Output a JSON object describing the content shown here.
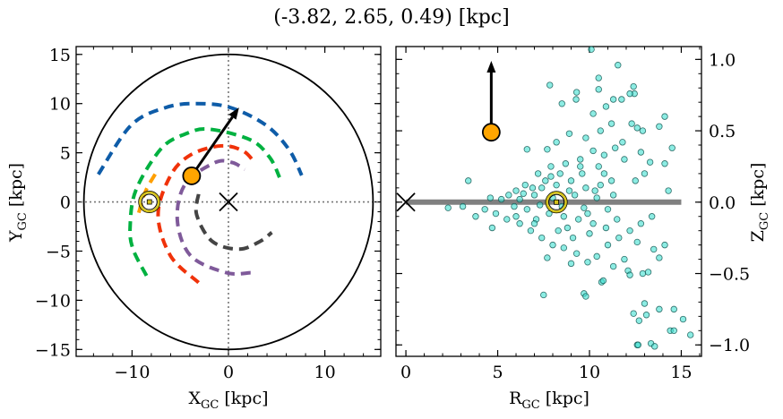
{
  "figure_title": "(-3.82, 2.65, 0.49) [kpc]",
  "chart_data": [
    {
      "type": "line",
      "panel": "left",
      "xlabel": {
        "base": "X",
        "sub": "GC",
        "unit": " [kpc]"
      },
      "ylabel": {
        "base": "Y",
        "sub": "GC",
        "unit": " [kpc]"
      },
      "xlim": [
        -15.8,
        15.8
      ],
      "ylim": [
        -15.7,
        15.8
      ],
      "xticks": [
        {
          "v": -10,
          "label": "−10"
        },
        {
          "v": 0,
          "label": "0"
        },
        {
          "v": 10,
          "label": "10"
        }
      ],
      "yticks": [
        {
          "v": 15,
          "label": "15"
        },
        {
          "v": 10,
          "label": "10"
        },
        {
          "v": 5,
          "label": "5"
        },
        {
          "v": 0,
          "label": "0"
        },
        {
          "v": -5,
          "label": "−5"
        },
        {
          "v": -10,
          "label": "−10"
        },
        {
          "v": -15,
          "label": "−15"
        }
      ],
      "boundary_circle_radius": 15,
      "crosshair_lines": {
        "x": 0,
        "y": 0,
        "style": "dotted",
        "color": "#777777"
      },
      "series": [
        {
          "color": "#0e5ca8",
          "x": [
            -13.5,
            -10.1,
            -6.5,
            -3.3,
            0.2,
            3.9,
            6.3,
            7.6
          ],
          "y": [
            2.8,
            7.8,
            9.6,
            10.0,
            9.6,
            7.8,
            5.3,
            2.7
          ]
        },
        {
          "color": "#00b140",
          "x": [
            -8.5,
            -9.9,
            -10.2,
            -9.6,
            -7.0,
            -4.5,
            -2.0,
            2.3,
            4.3,
            5.3
          ],
          "y": [
            -7.5,
            -4.8,
            -2.5,
            1.2,
            5.4,
            6.9,
            7.4,
            6.3,
            4.5,
            2.5
          ]
        },
        {
          "color": "#ff9f00",
          "x": [
            -9.3,
            -8.9,
            -8.4,
            -7.3
          ],
          "y": [
            -1.1,
            0.3,
            1.5,
            3.3
          ]
        },
        {
          "color": "#f0320a",
          "x": [
            -3.1,
            -6.0,
            -7.3,
            -6.0,
            -3.9,
            -0.8,
            1.5,
            2.8
          ],
          "y": [
            -8.2,
            -5.5,
            -1.3,
            2.7,
            4.8,
            5.7,
            5.2,
            3.9
          ]
        },
        {
          "color": "#7f5a9a",
          "x": [
            2.3,
            -0.2,
            -3.9,
            -5.3,
            -4.5,
            -1.4,
            0.4,
            1.7
          ],
          "y": [
            -7.2,
            -7.2,
            -5.5,
            -1.9,
            1.8,
            4.0,
            4.0,
            3.3
          ]
        },
        {
          "color": "#444444",
          "x": [
            -3.1,
            -3.3,
            -1.7,
            1.1,
            3.3,
            4.5
          ],
          "y": [
            0.8,
            -1.3,
            -4.0,
            -4.8,
            -4.0,
            -3.1
          ]
        }
      ],
      "galactic_center_marker": {
        "x": 0,
        "y": 0,
        "symbol": "x"
      },
      "sun_marker": {
        "x": -8.2,
        "y": 0,
        "symbol": "sun",
        "color": "#d4c21a"
      },
      "object_marker": {
        "x": -3.82,
        "y": 2.65,
        "color": "#ffa500"
      },
      "velocity_arrow": {
        "from": [
          -3.82,
          2.65
        ],
        "to": [
          1.1,
          9.6
        ]
      }
    },
    {
      "type": "scatter",
      "panel": "right",
      "xlabel": {
        "base": "R",
        "sub": "GC",
        "unit": " [kpc]"
      },
      "ylabel": {
        "base": "Z",
        "sub": "GC",
        "unit": " [kpc]"
      },
      "xlim": [
        -0.54,
        16.1
      ],
      "ylim": [
        -1.08,
        1.09
      ],
      "xticks": [
        {
          "v": 0,
          "label": "0"
        },
        {
          "v": 5,
          "label": "5"
        },
        {
          "v": 10,
          "label": "10"
        },
        {
          "v": 15,
          "label": "15"
        }
      ],
      "yticks": [
        {
          "v": 1.0,
          "label": "1.0"
        },
        {
          "v": 0.5,
          "label": "0.5"
        },
        {
          "v": 0.0,
          "label": "0.0"
        },
        {
          "v": -0.5,
          "label": "−0.5"
        },
        {
          "v": -1.0,
          "label": "−1.0"
        }
      ],
      "disk_line": {
        "x": [
          0,
          15
        ],
        "y": 0,
        "color": "#808080"
      },
      "point_color": "#40e0d0",
      "points": [
        [
          10.1,
          1.07
        ],
        [
          11.55,
          0.96
        ],
        [
          7.84,
          0.82
        ],
        [
          10.5,
          0.87
        ],
        [
          10.5,
          0.79
        ],
        [
          9.3,
          0.77
        ],
        [
          9.27,
          0.72
        ],
        [
          8.5,
          0.69
        ],
        [
          10.2,
          0.62
        ],
        [
          10.9,
          0.67
        ],
        [
          11.3,
          0.72
        ],
        [
          11.75,
          0.72
        ],
        [
          12.4,
          0.81
        ],
        [
          12.45,
          0.76
        ],
        [
          12.2,
          0.76
        ],
        [
          14.1,
          0.6
        ],
        [
          13.8,
          0.53
        ],
        [
          14.5,
          0.38
        ],
        [
          14.1,
          0.27
        ],
        [
          14.3,
          0.08
        ],
        [
          3.4,
          0.15
        ],
        [
          2.3,
          -0.04
        ],
        [
          3.1,
          -0.03
        ],
        [
          3.8,
          -0.1
        ],
        [
          4.7,
          -0.18
        ],
        [
          6.6,
          0.37
        ],
        [
          7.5,
          -0.65
        ],
        [
          9.7,
          -0.64
        ],
        [
          9.8,
          -0.66
        ],
        [
          10.66,
          -0.56
        ],
        [
          10.75,
          -0.55
        ],
        [
          12.1,
          -0.48
        ],
        [
          12.2,
          -0.51
        ],
        [
          12.9,
          -0.5
        ],
        [
          13.2,
          -0.49
        ],
        [
          12.4,
          -0.78
        ],
        [
          13.0,
          -0.71
        ],
        [
          12.7,
          -0.83
        ],
        [
          13.1,
          -0.79
        ],
        [
          13.8,
          -0.75
        ],
        [
          14.6,
          -0.75
        ],
        [
          15.1,
          -0.82
        ],
        [
          14.4,
          -0.9
        ],
        [
          14.6,
          -0.9
        ],
        [
          15.5,
          -0.93
        ],
        [
          12.6,
          -1.0
        ],
        [
          12.65,
          -1.0
        ],
        [
          13.35,
          -0.99
        ],
        [
          13.55,
          -1.01
        ],
        [
          7.7,
          -0.39
        ],
        [
          9.0,
          -0.43
        ],
        [
          14.1,
          -0.3
        ],
        [
          13.8,
          -0.39
        ],
        [
          13.5,
          -0.33
        ],
        [
          12.3,
          0.55
        ],
        [
          12.6,
          0.52
        ],
        [
          12.9,
          0.5
        ],
        [
          11.2,
          0.55
        ],
        [
          10.6,
          0.5
        ],
        [
          9.8,
          0.45
        ],
        [
          8.9,
          0.48
        ],
        [
          8.2,
          0.42
        ],
        [
          7.7,
          0.37
        ],
        [
          11.8,
          0.42
        ],
        [
          12.8,
          0.35
        ],
        [
          13.3,
          0.28
        ],
        [
          13.0,
          0.2
        ],
        [
          12.5,
          0.15
        ],
        [
          11.9,
          0.3
        ],
        [
          11.4,
          0.38
        ],
        [
          10.8,
          0.33
        ],
        [
          10.2,
          0.36
        ],
        [
          9.5,
          0.3
        ],
        [
          8.7,
          0.27
        ],
        [
          7.9,
          0.25
        ],
        [
          7.2,
          0.2
        ],
        [
          6.5,
          0.12
        ],
        [
          6.0,
          0.08
        ],
        [
          5.6,
          0.05
        ],
        [
          5.2,
          0.02
        ],
        [
          4.6,
          0.03
        ],
        [
          4.3,
          -0.05
        ],
        [
          4.9,
          -0.08
        ],
        [
          5.5,
          -0.12
        ],
        [
          6.2,
          -0.15
        ],
        [
          6.8,
          -0.2
        ],
        [
          7.4,
          -0.25
        ],
        [
          8.0,
          -0.3
        ],
        [
          8.6,
          -0.32
        ],
        [
          9.3,
          -0.36
        ],
        [
          9.9,
          -0.42
        ],
        [
          10.4,
          -0.38
        ],
        [
          11.0,
          -0.3
        ],
        [
          11.6,
          -0.25
        ],
        [
          12.2,
          -0.2
        ],
        [
          12.8,
          -0.15
        ],
        [
          13.4,
          -0.1
        ],
        [
          12.6,
          -0.28
        ],
        [
          11.9,
          -0.4
        ],
        [
          11.3,
          -0.45
        ],
        [
          6.2,
          0.02
        ],
        [
          6.6,
          -0.05
        ],
        [
          7.0,
          0.05
        ],
        [
          7.4,
          0.1
        ],
        [
          7.8,
          -0.08
        ],
        [
          8.2,
          0.12
        ],
        [
          8.6,
          -0.1
        ],
        [
          9.0,
          0.15
        ],
        [
          9.4,
          -0.12
        ],
        [
          9.8,
          0.1
        ],
        [
          10.2,
          -0.15
        ],
        [
          10.6,
          0.12
        ],
        [
          11.0,
          -0.05
        ],
        [
          7.1,
          -0.12
        ],
        [
          7.6,
          0.15
        ],
        [
          8.4,
          0.2
        ],
        [
          8.8,
          -0.18
        ],
        [
          9.6,
          0.2
        ],
        [
          10.0,
          -0.22
        ],
        [
          10.8,
          0.2
        ],
        [
          11.2,
          0.15
        ],
        [
          6.9,
          0.1
        ],
        [
          7.3,
          -0.02
        ],
        [
          8.0,
          0.03
        ],
        [
          8.5,
          -0.03
        ],
        [
          9.2,
          0.05
        ],
        [
          9.7,
          -0.04
        ],
        [
          10.4,
          0.03
        ],
        [
          11.3,
          0.05
        ],
        [
          5.9,
          -0.03
        ],
        [
          6.4,
          0.06
        ],
        [
          10.9,
          -0.18
        ],
        [
          9.1,
          -0.25
        ],
        [
          8.3,
          -0.2
        ],
        [
          7.9,
          0.18
        ],
        [
          9.5,
          0.25
        ],
        [
          10.5,
          0.25
        ],
        [
          11.5,
          -0.12
        ],
        [
          6.0,
          -0.1
        ],
        [
          7.0,
          -0.15
        ],
        [
          8.9,
          0.08
        ],
        [
          9.9,
          -0.08
        ],
        [
          10.3,
          0.08
        ]
      ],
      "galactic_center_marker": {
        "x": 0,
        "y": 0,
        "symbol": "x"
      },
      "sun_marker": {
        "x": 8.2,
        "y": 0,
        "symbol": "sun",
        "color": "#d4c21a"
      },
      "object_marker": {
        "x": 4.65,
        "y": 0.49,
        "color": "#ffa500"
      },
      "velocity_arrow": {
        "from": [
          4.65,
          0.49
        ],
        "to": [
          4.65,
          0.99
        ]
      }
    }
  ]
}
